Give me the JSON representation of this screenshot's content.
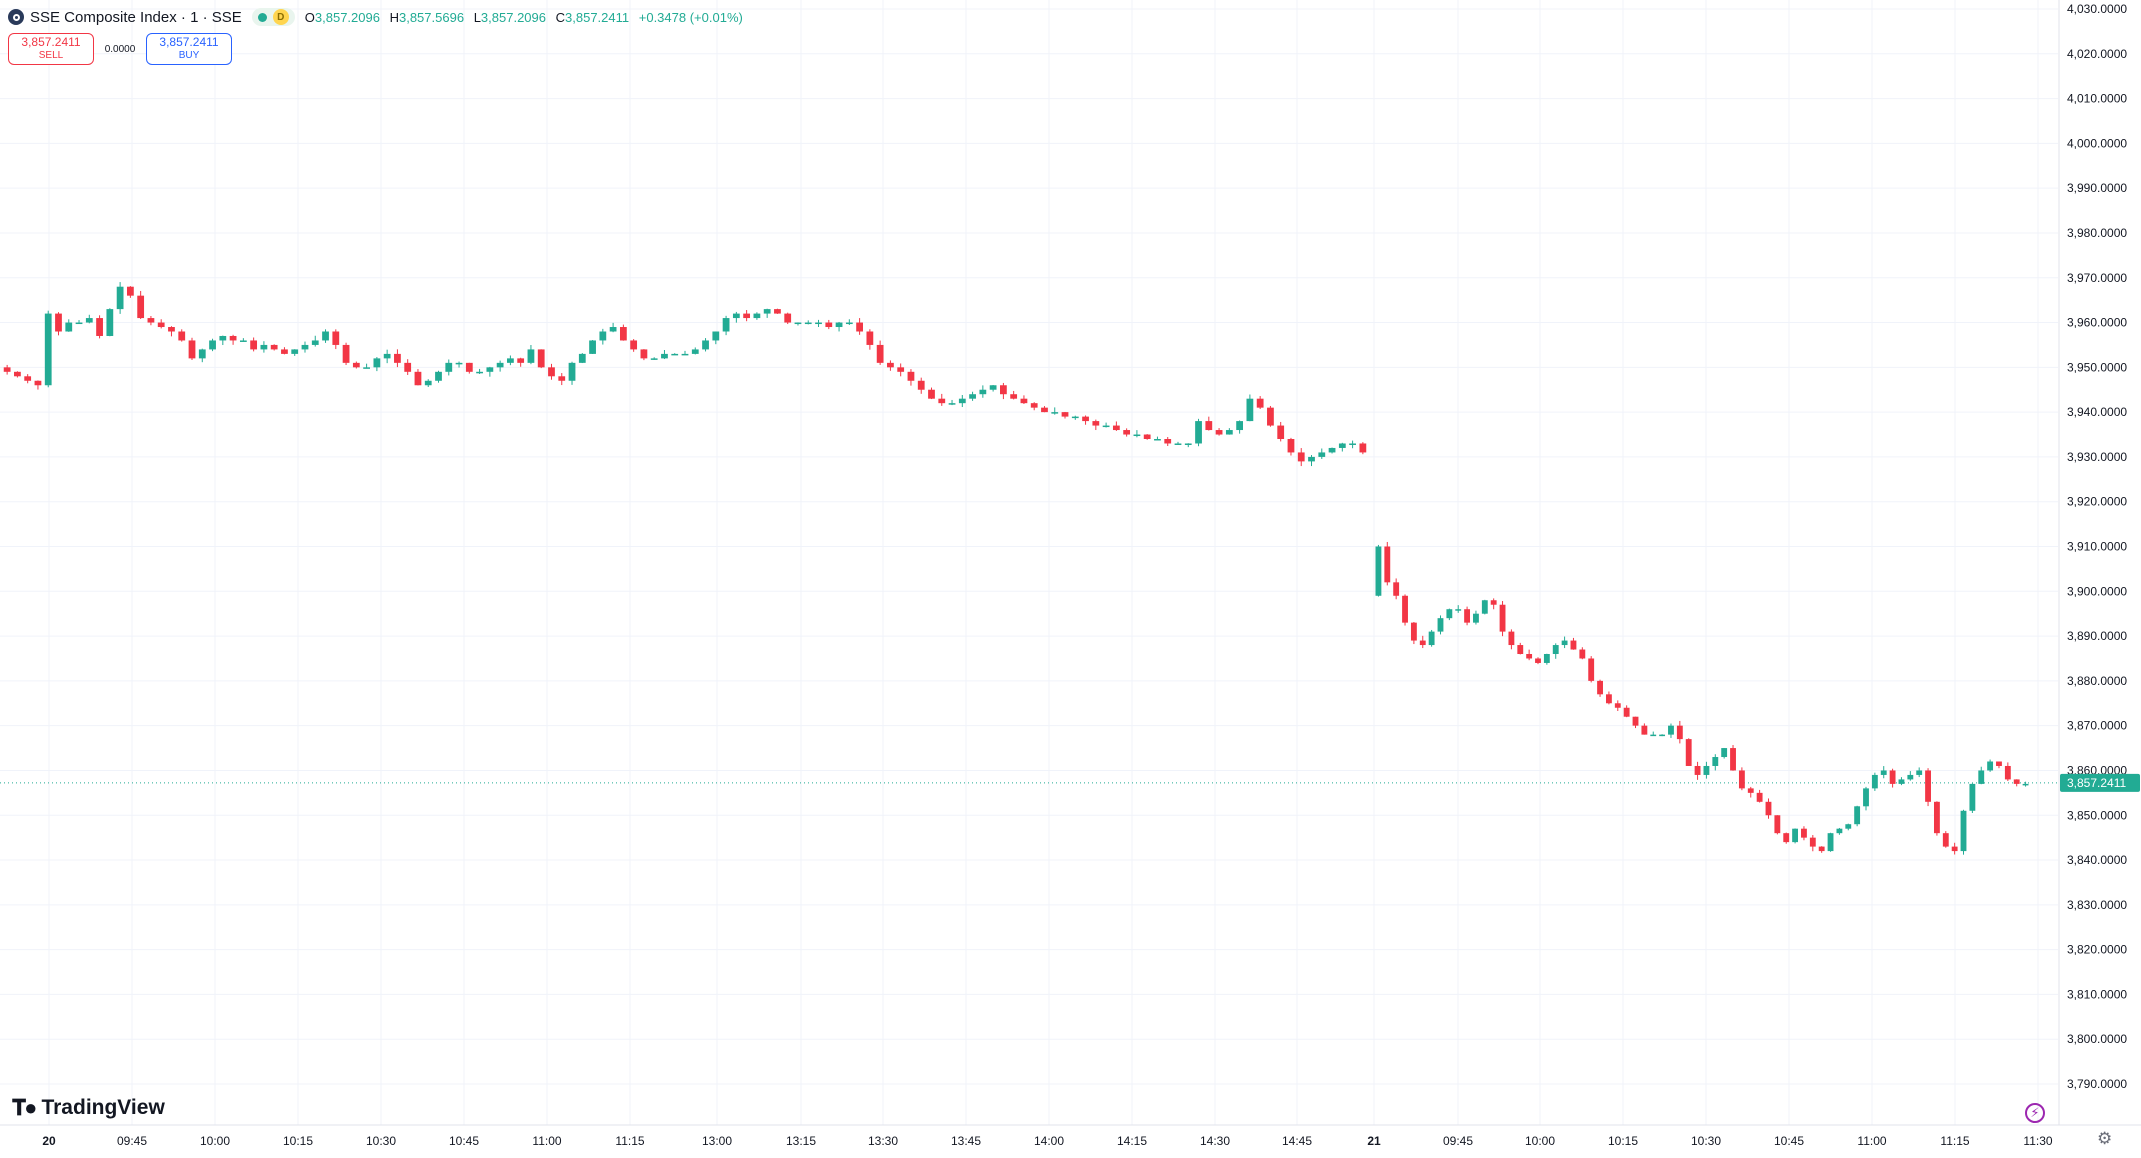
{
  "header": {
    "symbol_title": "SSE Composite Index · 1 · SSE",
    "status_badge": "D",
    "ohlc": {
      "o_label": "O",
      "o_value": "3,857.2096",
      "h_label": "H",
      "h_value": "3,857.5696",
      "l_label": "L",
      "l_value": "3,857.2096",
      "c_label": "C",
      "c_value": "3,857.2411",
      "change": "+0.3478 (+0.01%)"
    }
  },
  "trade": {
    "sell_price": "3,857.2411",
    "sell_label": "SELL",
    "spread": "0.0000",
    "buy_price": "3,857.2411",
    "buy_label": "BUY"
  },
  "branding": {
    "logo_text": "TradingView"
  },
  "colors": {
    "up": "#22ab94",
    "down": "#f23645",
    "grid": "#f0f3fa",
    "axis_text": "#131722",
    "price_tag": "#22ab94"
  },
  "icons": {
    "brand": "tradingview-logo-icon",
    "alert": "lightning-icon",
    "settings": "gear-icon"
  },
  "chart_data": {
    "type": "candlestick",
    "symbol": "SSE Composite Index",
    "interval": "1",
    "y_range": [
      3785,
      4032
    ],
    "y_ticks": [
      "3,790.0000",
      "3,800.0000",
      "3,810.0000",
      "3,820.0000",
      "3,830.0000",
      "3,840.0000",
      "3,850.0000",
      "3,860.0000",
      "3,870.0000",
      "3,880.0000",
      "3,890.0000",
      "3,900.0000",
      "3,910.0000",
      "3,920.0000",
      "3,930.0000",
      "3,940.0000",
      "3,950.0000",
      "3,960.0000",
      "3,970.0000",
      "3,980.0000",
      "3,990.0000",
      "4,000.0000",
      "4,010.0000",
      "4,020.0000",
      "4,030.0000"
    ],
    "y_tick_values": [
      3790,
      3800,
      3810,
      3820,
      3830,
      3840,
      3850,
      3860,
      3870,
      3880,
      3890,
      3900,
      3910,
      3920,
      3930,
      3940,
      3950,
      3960,
      3970,
      3980,
      3990,
      4000,
      4010,
      4020,
      4030
    ],
    "x_tick_labels": [
      "20",
      "09:45",
      "10:00",
      "10:15",
      "10:30",
      "10:45",
      "11:00",
      "11:15",
      "13:00",
      "13:15",
      "13:30",
      "13:45",
      "14:00",
      "14:15",
      "14:30",
      "14:45",
      "21",
      "09:45",
      "10:00",
      "10:15",
      "10:30",
      "10:45",
      "11:00",
      "11:15",
      "11:30"
    ],
    "x_tick_bold": [
      true,
      false,
      false,
      false,
      false,
      false,
      false,
      false,
      false,
      false,
      false,
      false,
      false,
      false,
      false,
      false,
      true,
      false,
      false,
      false,
      false,
      false,
      false,
      false,
      false
    ],
    "current_price": 3857.2411,
    "current_price_label": "3,857.2411",
    "grid": true,
    "sessions": [
      {
        "name": "day 20",
        "path": [
          3950,
          3949,
          3948,
          3947,
          3946,
          3962,
          3958,
          3960,
          3960,
          3961,
          3957,
          3963,
          3968,
          3966,
          3961,
          3960,
          3959,
          3958,
          3956,
          3952,
          3954,
          3956,
          3957,
          3956,
          3956,
          3954,
          3955,
          3954,
          3953,
          3954,
          3955,
          3956,
          3958,
          3955,
          3951,
          3950,
          3950,
          3952,
          3953,
          3951,
          3949,
          3946,
          3947,
          3949,
          3951,
          3951,
          3949,
          3949,
          3950,
          3951,
          3952,
          3951,
          3954,
          3950,
          3948,
          3947,
          3951,
          3953,
          3956,
          3958,
          3959,
          3956,
          3954,
          3952,
          3952,
          3953,
          3953,
          3953,
          3954,
          3956,
          3958,
          3961,
          3962,
          3961,
          3962,
          3963,
          3962,
          3960,
          3960,
          3960,
          3960,
          3959,
          3960,
          3960,
          3958,
          3955,
          3951,
          3950,
          3949,
          3947,
          3945,
          3943,
          3942,
          3942,
          3943,
          3944,
          3945,
          3946,
          3944,
          3943,
          3942,
          3941,
          3940,
          3940,
          3939,
          3939,
          3938,
          3937,
          3937,
          3936,
          3935,
          3935,
          3934,
          3934,
          3933,
          3933,
          3933,
          3938,
          3936,
          3935,
          3936,
          3938,
          3943,
          3941,
          3937,
          3934,
          3931,
          3929,
          3930,
          3931,
          3932,
          3933,
          3933,
          3931
        ]
      },
      {
        "name": "day 21",
        "path": [
          3899,
          3910,
          3902,
          3899,
          3893,
          3889,
          3888,
          3891,
          3894,
          3896,
          3896,
          3893,
          3895,
          3898,
          3897,
          3891,
          3888,
          3886,
          3885,
          3884,
          3886,
          3888,
          3889,
          3887,
          3885,
          3880,
          3877,
          3875,
          3874,
          3872,
          3870,
          3868,
          3868,
          3868,
          3870,
          3867,
          3861,
          3859,
          3861,
          3863,
          3865,
          3860,
          3856,
          3855,
          3853,
          3850,
          3846,
          3844,
          3847,
          3845,
          3843,
          3842,
          3846,
          3847,
          3848,
          3852,
          3856,
          3859,
          3860,
          3857,
          3858,
          3859,
          3860,
          3853,
          3846,
          3843,
          3842,
          3851,
          3857,
          3860,
          3862,
          3861,
          3858,
          3857,
          3857
        ]
      }
    ]
  }
}
